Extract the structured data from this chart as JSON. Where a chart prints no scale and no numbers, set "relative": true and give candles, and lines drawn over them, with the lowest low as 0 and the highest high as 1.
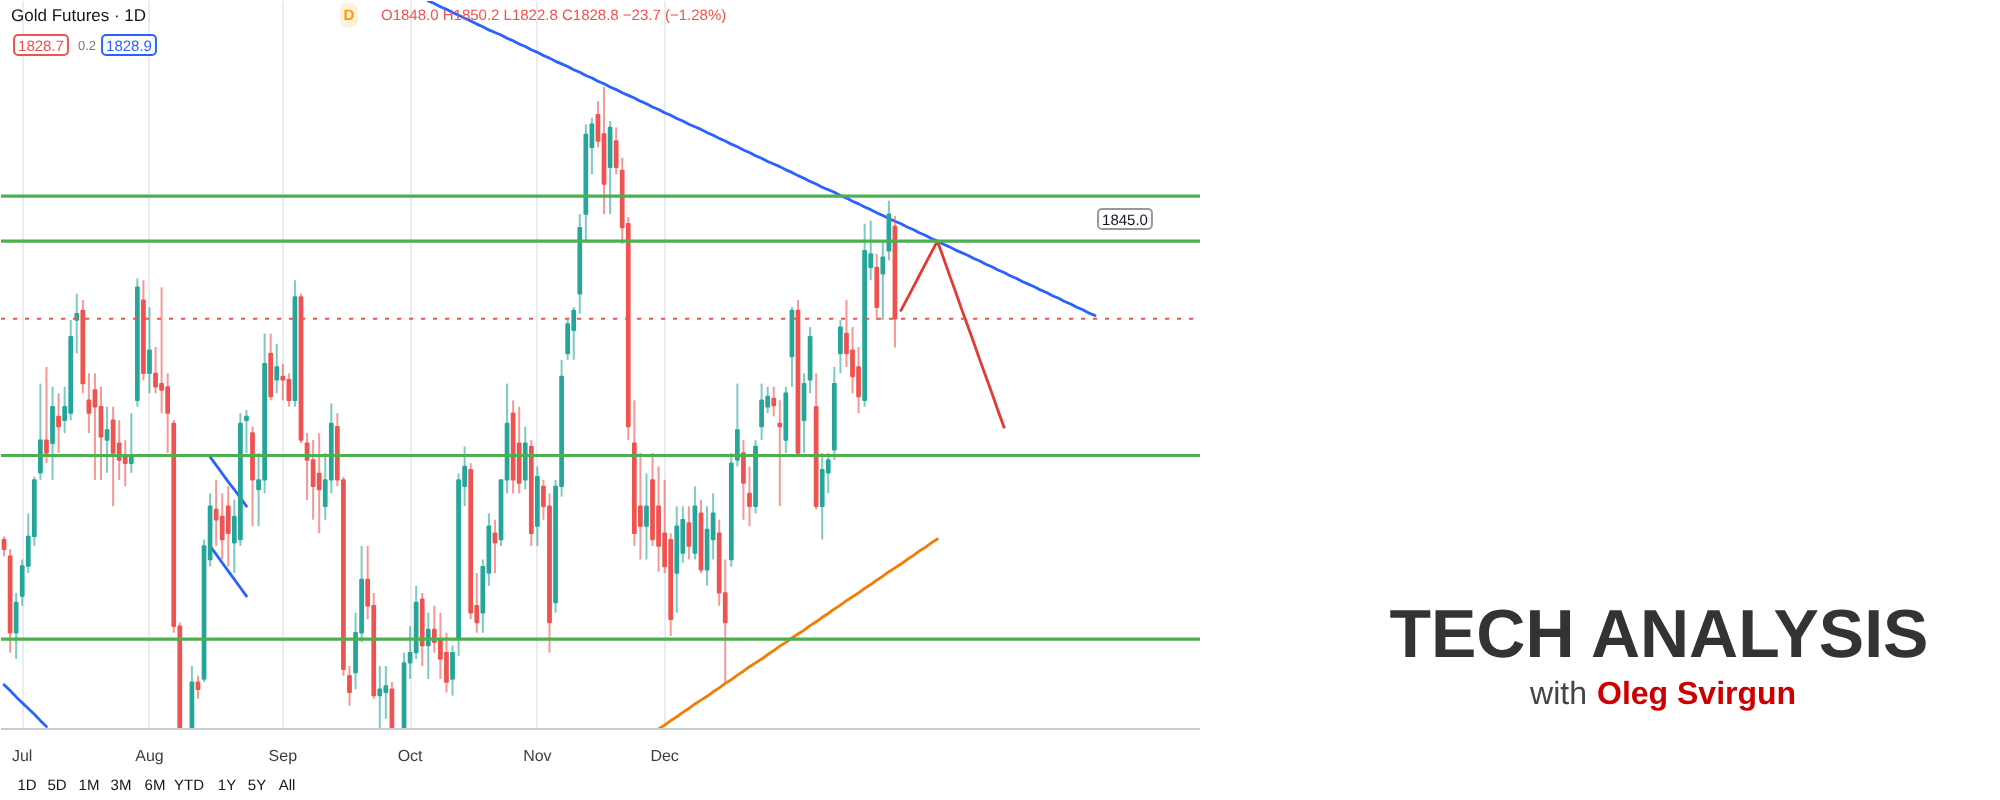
{
  "chart_data": {
    "type": "candlestick",
    "title": "TECH ANALYSIS",
    "subtitle": "with Oleg Svirgun",
    "annotations": [
      "Gold Futures · 1D",
      "D",
      "O1848.0 H1850.2 L1822.8 C1828.8 −23.7 (−1.28%)",
      "1828.7",
      "0.2",
      "1828.9",
      "1D",
      "5D",
      "1M",
      "3M",
      "6M",
      "YTD",
      "1Y",
      "5Y",
      "All",
      "1845.0"
    ],
    "relative": true,
    "grid": "x",
    "categories": [
      null,
      null,
      null,
      "Jul",
      null,
      null,
      null,
      null,
      null,
      null,
      null,
      null,
      null,
      null,
      null,
      null,
      null,
      null,
      null,
      null,
      null,
      null,
      null,
      null,
      "Aug",
      null,
      null,
      null,
      null,
      null,
      null,
      null,
      null,
      null,
      null,
      null,
      null,
      null,
      null,
      null,
      null,
      null,
      null,
      null,
      null,
      null,
      "Sep",
      null,
      null,
      null,
      null,
      null,
      null,
      null,
      null,
      null,
      null,
      null,
      null,
      null,
      null,
      null,
      null,
      null,
      null,
      null,
      null,
      "Oct",
      null,
      null,
      null,
      null,
      null,
      null,
      null,
      null,
      null,
      null,
      null,
      null,
      null,
      null,
      null,
      null,
      null,
      null,
      null,
      null,
      "Nov",
      null,
      null,
      null,
      null,
      null,
      null,
      null,
      null,
      null,
      null,
      null,
      null,
      null,
      null,
      null,
      null,
      null,
      null,
      null,
      null,
      "Dec",
      null,
      null,
      null,
      null,
      null,
      null,
      null,
      null,
      null,
      null,
      null,
      null,
      null,
      null,
      null,
      null,
      null,
      null,
      null,
      null,
      null,
      null,
      null,
      null,
      null,
      null,
      null,
      null,
      null,
      null,
      null,
      null,
      null,
      null,
      null,
      null,
      null,
      null,
      null,
      null,
      null,
      null,
      null,
      null,
      null,
      null,
      null,
      null,
      null,
      null,
      null,
      null,
      null,
      null,
      null,
      null,
      null,
      null,
      null,
      null,
      null,
      null,
      null,
      null,
      null,
      null,
      null,
      null,
      null,
      null,
      null,
      null,
      null,
      null,
      null,
      null,
      null,
      null,
      null,
      null,
      null,
      null,
      null,
      null,
      null,
      null,
      null,
      null
    ],
    "ohlc": [
      [
        0.295,
        0.3,
        0.269,
        0.28
      ],
      [
        0.269,
        0.28,
        0.119,
        0.15
      ],
      [
        0.15,
        0.212,
        0.109,
        0.197
      ],
      [
        0.207,
        0.264,
        0.192,
        0.254
      ],
      [
        0.254,
        0.336,
        0.243,
        0.3
      ],
      [
        0.3,
        0.393,
        0.285,
        0.388
      ],
      [
        0.399,
        0.538,
        0.388,
        0.45
      ],
      [
        0.45,
        0.564,
        0.414,
        0.43
      ],
      [
        0.445,
        0.533,
        0.388,
        0.502
      ],
      [
        0.487,
        0.523,
        0.43,
        0.471
      ],
      [
        0.481,
        0.533,
        0.461,
        0.502
      ],
      [
        0.492,
        0.637,
        0.481,
        0.611
      ],
      [
        0.637,
        0.678,
        0.585,
        0.647
      ],
      [
        0.652,
        0.668,
        0.523,
        0.538
      ],
      [
        0.512,
        0.554,
        0.461,
        0.492
      ],
      [
        0.528,
        0.554,
        0.388,
        0.502
      ],
      [
        0.502,
        0.533,
        0.388,
        0.455
      ],
      [
        0.45,
        0.502,
        0.399,
        0.466
      ],
      [
        0.481,
        0.502,
        0.347,
        0.43
      ],
      [
        0.445,
        0.481,
        0.388,
        0.419
      ],
      [
        0.424,
        0.45,
        0.378,
        0.414
      ],
      [
        0.414,
        0.492,
        0.399,
        0.424
      ],
      [
        0.512,
        0.702,
        0.502,
        0.688
      ],
      [
        0.668,
        0.699,
        0.543,
        0.554
      ],
      [
        0.554,
        0.657,
        0.523,
        0.59
      ],
      [
        0.554,
        0.595,
        0.523,
        0.533
      ],
      [
        0.538,
        0.688,
        0.492,
        0.528
      ],
      [
        0.533,
        0.554,
        0.43,
        0.492
      ],
      [
        0.476,
        0.481,
        0.15,
        0.16
      ],
      [
        0.16,
        0.166,
        0.0,
        0.0
      ],
      null,
      [
        0.0,
        0.098,
        0.0,
        0.073
      ],
      [
        0.073,
        0.083,
        0.047,
        0.062
      ],
      [
        0.078,
        0.295,
        0.073,
        0.285
      ],
      [
        0.264,
        0.367,
        0.253,
        0.347
      ],
      [
        0.342,
        0.388,
        0.285,
        0.326
      ],
      [
        0.331,
        0.367,
        0.264,
        0.295
      ],
      [
        0.347,
        0.378,
        0.253,
        0.305
      ],
      [
        0.29,
        0.357,
        0.243,
        0.331
      ],
      [
        0.295,
        0.492,
        0.285,
        0.476
      ],
      [
        0.481,
        0.497,
        0.43,
        0.487
      ],
      [
        0.461,
        0.471,
        0.316,
        0.388
      ],
      [
        0.373,
        0.43,
        0.316,
        0.388
      ],
      [
        0.388,
        0.616,
        0.367,
        0.569
      ],
      [
        0.585,
        0.616,
        0.512,
        0.518
      ],
      [
        0.544,
        0.6,
        0.523,
        0.564
      ],
      [
        0.549,
        0.569,
        0.512,
        0.544
      ],
      [
        0.544,
        0.554,
        0.502,
        0.512
      ],
      [
        0.512,
        0.699,
        0.502,
        0.673
      ],
      [
        0.673,
        0.678,
        0.445,
        0.45
      ],
      [
        0.445,
        0.461,
        0.357,
        0.419
      ],
      [
        0.419,
        0.45,
        0.326,
        0.378
      ],
      [
        0.398,
        0.461,
        0.305,
        0.373
      ],
      [
        0.347,
        0.43,
        0.326,
        0.388
      ],
      [
        0.388,
        0.507,
        0.367,
        0.476
      ],
      [
        0.471,
        0.492,
        0.378,
        0.388
      ],
      [
        0.388,
        0.393,
        0.083,
        0.093
      ],
      [
        0.083,
        0.098,
        0.036,
        0.057
      ],
      [
        0.088,
        0.181,
        0.062,
        0.15
      ],
      [
        0.15,
        0.285,
        0.135,
        0.233
      ],
      [
        0.233,
        0.285,
        0.171,
        0.192
      ],
      [
        0.192,
        0.212,
        0.047,
        0.052
      ],
      [
        0.052,
        0.098,
        0.0,
        0.062
      ],
      [
        0.057,
        0.098,
        0.016,
        0.067
      ],
      [
        0.062,
        0.073,
        0.0,
        0.0
      ],
      null,
      [
        0.0,
        0.119,
        0.0,
        0.103
      ],
      [
        0.103,
        0.16,
        0.078,
        0.119
      ],
      [
        0.119,
        0.223,
        0.109,
        0.197
      ],
      [
        0.202,
        0.212,
        0.098,
        0.13
      ],
      [
        0.13,
        0.181,
        0.078,
        0.155
      ],
      [
        0.155,
        0.192,
        0.119,
        0.135
      ],
      [
        0.14,
        0.181,
        0.078,
        0.109
      ],
      [
        0.119,
        0.15,
        0.057,
        0.073
      ],
      [
        0.078,
        0.13,
        0.052,
        0.119
      ],
      [
        0.14,
        0.398,
        0.114,
        0.388
      ],
      [
        0.378,
        0.44,
        0.347,
        0.409
      ],
      [
        0.404,
        0.414,
        0.171,
        0.181
      ],
      [
        0.192,
        0.243,
        0.15,
        0.166
      ],
      [
        0.181,
        0.264,
        0.15,
        0.253
      ],
      [
        0.243,
        0.336,
        0.223,
        0.316
      ],
      [
        0.305,
        0.326,
        0.243,
        0.29
      ],
      [
        0.295,
        0.388,
        0.285,
        0.388
      ],
      [
        0.388,
        0.538,
        0.367,
        0.476
      ],
      [
        0.492,
        0.512,
        0.367,
        0.388
      ],
      [
        0.445,
        0.502,
        0.367,
        0.383
      ],
      [
        0.388,
        0.471,
        0.373,
        0.445
      ],
      [
        0.44,
        0.45,
        0.285,
        0.305
      ],
      [
        0.316,
        0.409,
        0.285,
        0.393
      ],
      [
        0.378,
        0.388,
        0.326,
        0.347
      ],
      [
        0.347,
        0.367,
        0.119,
        0.166
      ],
      [
        0.197,
        0.388,
        0.181,
        0.378
      ],
      [
        0.378,
        0.575,
        0.362,
        0.549
      ],
      [
        0.585,
        0.637,
        0.575,
        0.631
      ],
      [
        0.621,
        0.657,
        0.575,
        0.652
      ],
      [
        0.678,
        0.802,
        0.647,
        0.781
      ],
      [
        0.802,
        0.942,
        0.761,
        0.926
      ],
      [
        0.906,
        0.952,
        0.864,
        0.942
      ],
      [
        0.957,
        0.978,
        0.906,
        0.916
      ],
      [
        0.927,
        1.0,
        0.802,
        0.849
      ],
      [
        0.875,
        0.947,
        0.802,
        0.937
      ],
      [
        0.916,
        0.937,
        0.864,
        0.875
      ],
      [
        0.87,
        0.89,
        0.756,
        0.781
      ],
      [
        0.787,
        0.797,
        0.45,
        0.471
      ],
      [
        0.445,
        0.512,
        0.285,
        0.305
      ],
      [
        0.347,
        0.43,
        0.264,
        0.316
      ],
      [
        0.316,
        0.398,
        0.264,
        0.347
      ],
      [
        0.388,
        0.43,
        0.285,
        0.295
      ],
      [
        0.347,
        0.409,
        0.245,
        0.285
      ],
      [
        0.305,
        0.388,
        0.243,
        0.253
      ],
      [
        0.295,
        0.305,
        0.145,
        0.171
      ],
      [
        0.243,
        0.347,
        0.181,
        0.316
      ],
      [
        0.274,
        0.347,
        0.259,
        0.326
      ],
      [
        0.321,
        0.347,
        0.264,
        0.285
      ],
      [
        0.274,
        0.378,
        0.264,
        0.347
      ],
      [
        0.336,
        0.357,
        0.243,
        0.248
      ],
      [
        0.248,
        0.347,
        0.223,
        0.311
      ],
      [
        0.295,
        0.367,
        0.264,
        0.336
      ],
      [
        0.305,
        0.326,
        0.192,
        0.212
      ],
      [
        0.212,
        0.264,
        0.073,
        0.166
      ],
      [
        0.264,
        0.43,
        0.253,
        0.414
      ],
      [
        0.419,
        0.538,
        0.409,
        0.466
      ],
      [
        0.43,
        0.45,
        0.326,
        0.383
      ],
      [
        0.367,
        0.409,
        0.316,
        0.347
      ],
      [
        0.347,
        0.45,
        0.336,
        0.44
      ],
      [
        0.471,
        0.538,
        0.45,
        0.512
      ],
      [
        0.502,
        0.533,
        0.492,
        0.518
      ],
      [
        0.515,
        0.533,
        0.487,
        0.504
      ],
      [
        0.476,
        0.512,
        0.347,
        0.471
      ],
      [
        0.45,
        0.533,
        0.43,
        0.523
      ],
      [
        0.58,
        0.657,
        0.533,
        0.652
      ],
      [
        0.652,
        0.668,
        0.424,
        0.43
      ],
      [
        0.481,
        0.554,
        0.43,
        0.538
      ],
      [
        0.544,
        0.626,
        0.523,
        0.611
      ],
      [
        0.502,
        0.554,
        0.342,
        0.347
      ],
      [
        0.347,
        0.43,
        0.295,
        0.404
      ],
      [
        0.399,
        0.43,
        0.367,
        0.419
      ],
      [
        0.435,
        0.564,
        0.419,
        0.538
      ],
      [
        0.585,
        0.637,
        0.554,
        0.626
      ],
      [
        0.616,
        0.668,
        0.564,
        0.585
      ],
      [
        0.59,
        0.626,
        0.523,
        0.549
      ],
      [
        0.564,
        0.595,
        0.492,
        0.518
      ],
      [
        0.512,
        0.787,
        0.502,
        0.745
      ],
      [
        0.719,
        0.792,
        0.699,
        0.74
      ],
      [
        0.719,
        0.74,
        0.637,
        0.657
      ],
      [
        0.709,
        0.761,
        0.637,
        0.735
      ],
      [
        0.745,
        0.823,
        0.73,
        0.802
      ],
      [
        0.783,
        0.799,
        0.594,
        0.639
      ],
      null,
      null,
      null,
      null,
      null,
      null,
      null,
      null,
      null,
      null,
      null,
      null,
      null,
      null,
      null,
      null,
      null,
      null,
      null,
      null,
      null,
      null,
      null,
      null,
      null,
      null,
      null,
      null,
      null,
      null,
      null,
      null,
      null,
      null,
      null,
      null,
      null,
      null,
      null,
      null,
      null,
      null,
      null,
      null,
      null,
      null,
      null,
      null,
      null,
      null
    ],
    "colors": [
      "#ef5350",
      "#ef5350",
      "#26a69a",
      "#26a69a",
      "#26a69a",
      "#26a69a",
      "#26a69a",
      "#ef5350",
      "#26a69a",
      "#ef5350",
      "#26a69a",
      "#26a69a",
      "#26a69a",
      "#ef5350",
      "#ef5350",
      "#ef5350",
      "#ef5350",
      "#26a69a",
      "#ef5350",
      "#ef5350",
      "#ef5350",
      "#26a69a",
      "#26a69a",
      "#ef5350",
      "#26a69a",
      "#ef5350",
      "#ef5350",
      "#ef5350",
      "#ef5350",
      "#ef5350",
      null,
      "#26a69a",
      "#ef5350",
      "#26a69a",
      "#26a69a",
      "#ef5350",
      "#ef5350",
      "#ef5350",
      "#26a69a",
      "#26a69a",
      "#26a69a",
      "#ef5350",
      "#26a69a",
      "#26a69a",
      "#ef5350",
      "#26a69a",
      "#ef5350",
      "#ef5350",
      "#26a69a",
      "#ef5350",
      "#ef5350",
      "#ef5350",
      "#ef5350",
      "#26a69a",
      "#26a69a",
      "#ef5350",
      "#ef5350",
      "#ef5350",
      "#26a69a",
      "#26a69a",
      "#ef5350",
      "#ef5350",
      "#26a69a",
      "#26a69a",
      "#ef5350",
      null,
      "#26a69a",
      "#26a69a",
      "#26a69a",
      "#ef5350",
      "#26a69a",
      "#ef5350",
      "#ef5350",
      "#ef5350",
      "#26a69a",
      "#26a69a",
      "#26a69a",
      "#ef5350",
      "#ef5350",
      "#26a69a",
      "#26a69a",
      "#ef5350",
      "#26a69a",
      "#26a69a",
      "#ef5350",
      "#ef5350",
      "#26a69a",
      "#ef5350",
      "#26a69a",
      "#ef5350",
      "#ef5350",
      "#26a69a",
      "#26a69a",
      "#26a69a",
      "#26a69a",
      "#26a69a",
      "#26a69a",
      "#26a69a",
      "#ef5350",
      "#ef5350",
      "#26a69a",
      "#ef5350",
      "#ef5350",
      "#ef5350",
      "#ef5350",
      "#ef5350",
      "#26a69a",
      "#ef5350",
      "#ef5350",
      "#ef5350",
      "#ef5350",
      "#26a69a",
      "#26a69a",
      "#ef5350",
      "#26a69a",
      "#ef5350",
      "#26a69a",
      "#26a69a",
      "#ef5350",
      "#ef5350",
      "#26a69a",
      "#26a69a",
      "#ef5350",
      "#ef5350",
      "#26a69a",
      "#26a69a",
      "#26a69a",
      "#ef5350",
      "#ef5350",
      "#26a69a",
      "#26a69a",
      "#ef5350",
      "#26a69a",
      "#26a69a",
      "#ef5350",
      "#26a69a",
      "#26a69a",
      "#26a69a",
      "#26a69a",
      "#ef5350",
      "#ef5350",
      "#ef5350",
      "#26a69a",
      "#26a69a",
      "#ef5350",
      "#26a69a",
      "#26a69a",
      "#ef5350",
      null,
      null,
      null,
      null,
      null,
      null,
      null,
      null,
      null,
      null,
      null,
      null,
      null,
      null,
      null,
      null,
      null,
      null,
      null,
      null,
      null,
      null,
      null,
      null,
      null,
      null,
      null,
      null,
      null,
      null,
      null,
      null,
      null,
      null,
      null,
      null,
      null,
      null,
      null,
      null,
      null,
      null,
      null,
      null,
      null,
      null,
      null,
      null,
      null,
      null
    ],
    "series": [
      {
        "type": "line",
        "color": "#2962ff",
        "values": [
          null,
          null,
          null,
          null,
          null,
          null,
          null,
          null,
          null,
          null,
          null,
          null,
          null,
          null,
          null,
          null,
          null,
          null,
          null,
          null,
          null,
          null,
          null,
          null,
          null,
          null,
          null,
          null,
          null,
          null,
          null,
          null,
          null,
          null,
          null,
          null,
          null,
          null,
          null,
          null,
          null,
          null,
          null,
          null,
          null,
          null,
          null,
          null,
          null,
          null,
          null,
          null,
          null,
          null,
          null,
          null,
          null,
          null,
          null,
          null,
          null,
          null,
          null,
          null,
          null,
          null,
          null,
          null,
          null,
          null,
          1.134,
          1.13,
          1.125,
          1.121,
          1.116,
          1.112,
          1.107,
          1.103,
          1.098,
          1.094,
          1.089,
          1.085,
          1.081,
          1.076,
          1.072,
          1.067,
          1.063,
          1.058,
          1.054,
          1.049,
          1.045,
          1.04,
          1.036,
          1.032,
          1.027,
          1.023,
          1.018,
          1.014,
          1.009,
          1.005,
          1.0,
          0.996,
          0.991,
          0.987,
          0.983,
          0.978,
          0.974,
          0.969,
          0.965,
          0.96,
          0.956,
          0.951,
          0.947,
          0.942,
          0.938,
          0.934,
          0.929,
          0.925,
          0.92,
          0.916,
          0.911,
          0.907,
          0.902,
          0.898,
          0.893,
          0.889,
          0.884,
          0.88,
          0.876,
          0.871,
          0.867,
          0.862,
          0.858,
          0.853,
          0.849,
          0.844,
          0.84,
          0.836,
          0.831,
          0.827,
          0.822,
          0.818,
          0.813,
          0.809,
          0.804,
          0.8,
          0.795,
          0.791,
          0.787,
          0.782,
          0.778,
          0.773,
          0.769,
          0.764,
          0.76,
          0.755,
          0.751,
          0.746,
          0.742,
          0.738,
          0.733,
          0.729,
          0.724,
          0.72,
          0.715,
          0.711,
          0.706,
          0.702,
          0.697,
          0.693,
          0.689,
          0.684,
          0.68,
          0.675,
          0.671,
          0.666,
          0.662,
          0.657,
          0.653,
          0.648,
          0.644,
          null,
          null,
          null,
          null,
          null,
          null,
          null,
          null,
          null,
          null,
          null,
          null,
          null,
          null,
          null,
          null,
          null
        ]
      },
      {
        "type": "line",
        "color": "#f57c00",
        "values": [
          null,
          null,
          null,
          null,
          null,
          null,
          null,
          null,
          null,
          null,
          null,
          null,
          null,
          null,
          null,
          null,
          null,
          null,
          null,
          null,
          null,
          null,
          null,
          null,
          null,
          null,
          null,
          null,
          null,
          null,
          null,
          null,
          null,
          null,
          null,
          null,
          null,
          null,
          null,
          null,
          null,
          null,
          null,
          null,
          null,
          null,
          null,
          null,
          null,
          null,
          null,
          null,
          null,
          null,
          null,
          null,
          null,
          null,
          null,
          null,
          null,
          null,
          null,
          null,
          null,
          null,
          null,
          null,
          null,
          null,
          null,
          null,
          null,
          null,
          null,
          null,
          null,
          null,
          null,
          null,
          null,
          null,
          null,
          null,
          null,
          null,
          null,
          null,
          null,
          null,
          null,
          null,
          null,
          null,
          null,
          null,
          null,
          null,
          null,
          null,
          null,
          null,
          null,
          null,
          null,
          null,
          null,
          null,
          0.0,
          0.006,
          0.013,
          0.019,
          0.026,
          0.032,
          0.039,
          0.045,
          0.051,
          0.058,
          0.064,
          0.071,
          0.077,
          0.084,
          0.09,
          0.097,
          0.103,
          0.109,
          0.116,
          0.122,
          0.129,
          0.135,
          0.142,
          0.148,
          0.154,
          0.161,
          0.167,
          0.174,
          0.18,
          0.187,
          0.193,
          0.2,
          0.206,
          0.212,
          0.219,
          0.225,
          0.232,
          0.238,
          0.245,
          0.251,
          0.257,
          0.264,
          0.27,
          0.277,
          0.283,
          0.29,
          0.296,
          null,
          null,
          null,
          null,
          null,
          null,
          null,
          null,
          null,
          null,
          null,
          null,
          null,
          null,
          null,
          null,
          null,
          null,
          null,
          null,
          null,
          null,
          null,
          null,
          null,
          null,
          null,
          null,
          null,
          null,
          null,
          null,
          null,
          null,
          null,
          null,
          null,
          null,
          null,
          null,
          null,
          null,
          null
        ]
      },
      {
        "type": "line",
        "color": "#e53935",
        "values": [
          null,
          null,
          null,
          null,
          null,
          null,
          null,
          null,
          null,
          null,
          null,
          null,
          null,
          null,
          null,
          null,
          null,
          null,
          null,
          null,
          null,
          null,
          null,
          null,
          null,
          null,
          null,
          null,
          null,
          null,
          null,
          null,
          null,
          null,
          null,
          null,
          null,
          null,
          null,
          null,
          null,
          null,
          null,
          null,
          null,
          null,
          null,
          null,
          null,
          null,
          null,
          null,
          null,
          null,
          null,
          null,
          null,
          null,
          null,
          null,
          null,
          null,
          null,
          null,
          null,
          null,
          null,
          null,
          null,
          null,
          null,
          null,
          null,
          null,
          null,
          null,
          null,
          null,
          null,
          null,
          null,
          null,
          null,
          null,
          null,
          null,
          null,
          null,
          null,
          null,
          null,
          null,
          null,
          null,
          null,
          null,
          null,
          null,
          null,
          null,
          null,
          null,
          null,
          null,
          null,
          null,
          null,
          null,
          null,
          null,
          null,
          null,
          null,
          null,
          null,
          null,
          null,
          null,
          null,
          null,
          null,
          null,
          null,
          null,
          null,
          null,
          null,
          null,
          null,
          null,
          null,
          null,
          null,
          null,
          null,
          null,
          null,
          null,
          null,
          null,
          null,
          null,
          null,
          null,
          null,
          null,
          null,
          null,
          0.652,
          0.67,
          0.688,
          0.706,
          0.724,
          0.742,
          0.76,
          0.734,
          0.707,
          0.681,
          0.654,
          0.628,
          0.602,
          0.575,
          0.549,
          0.523,
          0.496,
          0.47,
          null,
          null,
          null,
          null,
          null,
          null,
          null,
          null,
          null,
          null,
          null,
          null,
          null,
          null,
          null,
          null,
          null,
          null,
          null,
          null,
          null,
          null,
          null,
          null,
          null,
          null,
          null,
          null,
          null,
          null,
          null,
          null
        ]
      },
      {
        "type": "line",
        "color": "#2962ff",
        "values": [
          null,
          null,
          null,
          null,
          null,
          null,
          null,
          null,
          null,
          null,
          null,
          null,
          null,
          null,
          null,
          null,
          null,
          null,
          null,
          null,
          null,
          null,
          null,
          null,
          null,
          null,
          null,
          null,
          null,
          null,
          null,
          null,
          null,
          null,
          0.424,
          0.411,
          0.398,
          0.385,
          0.373,
          0.36,
          0.347,
          null,
          null,
          null,
          null,
          null,
          null,
          null,
          null,
          null,
          null,
          null,
          null,
          null,
          null,
          null,
          null,
          null,
          null,
          null,
          null,
          null,
          null,
          null,
          null,
          null,
          null,
          null,
          null,
          null,
          null,
          null,
          null,
          null,
          null,
          null,
          null,
          null,
          null,
          null,
          null,
          null,
          null,
          null,
          null,
          null,
          null,
          null,
          null,
          null,
          null,
          null,
          null,
          null,
          null,
          null,
          null,
          null,
          null,
          null,
          null,
          null,
          null,
          null,
          null,
          null,
          null,
          null,
          null,
          null,
          null,
          null,
          null,
          null,
          null,
          null,
          null,
          null,
          null,
          null,
          null,
          null,
          null,
          null,
          null,
          null,
          null,
          null,
          null,
          null,
          null,
          null,
          null,
          null,
          null,
          null,
          null,
          null,
          null,
          null,
          null,
          null,
          null,
          null,
          null,
          null,
          null,
          null,
          null,
          null,
          null,
          null,
          null,
          null,
          null,
          null,
          null,
          null,
          null,
          null,
          null,
          null,
          null,
          null,
          null,
          null,
          null,
          null,
          null,
          null,
          null,
          null,
          null,
          null,
          null,
          null,
          null,
          null,
          null,
          null,
          null,
          null,
          null,
          null,
          null,
          null,
          null,
          null,
          null,
          null,
          null,
          null,
          null,
          null,
          null,
          null,
          null,
          null
        ]
      },
      {
        "type": "line",
        "color": "#2962ff",
        "values": [
          null,
          null,
          null,
          null,
          null,
          null,
          null,
          null,
          null,
          null,
          null,
          null,
          null,
          null,
          null,
          null,
          null,
          null,
          null,
          null,
          null,
          null,
          null,
          null,
          null,
          null,
          null,
          null,
          null,
          null,
          null,
          null,
          null,
          null,
          0.285,
          0.272,
          0.259,
          0.246,
          0.233,
          0.22,
          0.207,
          null,
          null,
          null,
          null,
          null,
          null,
          null,
          null,
          null,
          null,
          null,
          null,
          null,
          null,
          null,
          null,
          null,
          null,
          null,
          null,
          null,
          null,
          null,
          null,
          null,
          null,
          null,
          null,
          null,
          null,
          null,
          null,
          null,
          null,
          null,
          null,
          null,
          null,
          null,
          null,
          null,
          null,
          null,
          null,
          null,
          null,
          null,
          null,
          null,
          null,
          null,
          null,
          null,
          null,
          null,
          null,
          null,
          null,
          null,
          null,
          null,
          null,
          null,
          null,
          null,
          null,
          null,
          null,
          null,
          null,
          null,
          null,
          null,
          null,
          null,
          null,
          null,
          null,
          null,
          null,
          null,
          null,
          null,
          null,
          null,
          null,
          null,
          null,
          null,
          null,
          null,
          null,
          null,
          null,
          null,
          null,
          null,
          null,
          null,
          null,
          null,
          null,
          null,
          null,
          null,
          null,
          null,
          null,
          null,
          null,
          null,
          null,
          null,
          null,
          null,
          null,
          null,
          null,
          null,
          null,
          null,
          null,
          null,
          null,
          null,
          null,
          null,
          null,
          null,
          null,
          null,
          null,
          null,
          null,
          null,
          null,
          null,
          null,
          null,
          null,
          null,
          null,
          null,
          null,
          null,
          null,
          null,
          null,
          null,
          null,
          null,
          null,
          null,
          null,
          null,
          null,
          null
        ]
      },
      {
        "type": "line",
        "color": "#2962ff",
        "values": [
          0.069,
          0.06,
          0.05,
          0.041,
          0.032,
          0.023,
          0.013,
          0.004,
          null,
          null,
          null,
          null,
          null,
          null,
          null,
          null,
          null,
          null,
          null,
          null,
          null,
          null,
          null,
          null,
          null,
          null,
          null,
          null,
          null,
          null,
          null,
          null,
          null,
          null,
          null,
          null,
          null,
          null,
          null,
          null,
          null,
          null,
          null,
          null,
          null,
          null,
          null,
          null,
          null,
          null,
          null,
          null,
          null,
          null,
          null,
          null,
          null,
          null,
          null,
          null,
          null,
          null,
          null,
          null,
          null,
          null,
          null,
          null,
          null,
          null,
          null,
          null,
          null,
          null,
          null,
          null,
          null,
          null,
          null,
          null,
          null,
          null,
          null,
          null,
          null,
          null,
          null,
          null,
          null,
          null,
          null,
          null,
          null,
          null,
          null,
          null,
          null,
          null,
          null,
          null,
          null,
          null,
          null,
          null,
          null,
          null,
          null,
          null,
          null,
          null,
          null,
          null,
          null,
          null,
          null,
          null,
          null,
          null,
          null,
          null,
          null,
          null,
          null,
          null,
          null,
          null,
          null,
          null,
          null,
          null,
          null,
          null,
          null,
          null,
          null,
          null,
          null,
          null,
          null,
          null,
          null,
          null,
          null,
          null,
          null,
          null,
          null,
          null,
          null,
          null,
          null,
          null,
          null,
          null,
          null,
          null,
          null,
          null,
          null,
          null,
          null,
          null,
          null,
          null,
          null,
          null,
          null,
          null,
          null,
          null,
          null,
          null,
          null,
          null,
          null,
          null,
          null,
          null,
          null,
          null,
          null,
          null,
          null,
          null,
          null,
          null,
          null,
          null,
          null,
          null,
          null,
          null,
          null,
          null,
          null,
          null,
          null,
          null
        ]
      }
    ],
    "ref_lines": [
      {
        "axis": "y",
        "value": 0.83,
        "color": "#4caf50"
      },
      {
        "axis": "y",
        "value": 0.76,
        "color": "#4caf50"
      },
      {
        "axis": "y",
        "value": 0.426,
        "color": "#4caf50"
      },
      {
        "axis": "y",
        "value": 0.14,
        "color": "#4caf50"
      },
      {
        "axis": "y",
        "value": 0.639,
        "color": "#ef5350",
        "line_style": "dotted"
      }
    ]
  }
}
